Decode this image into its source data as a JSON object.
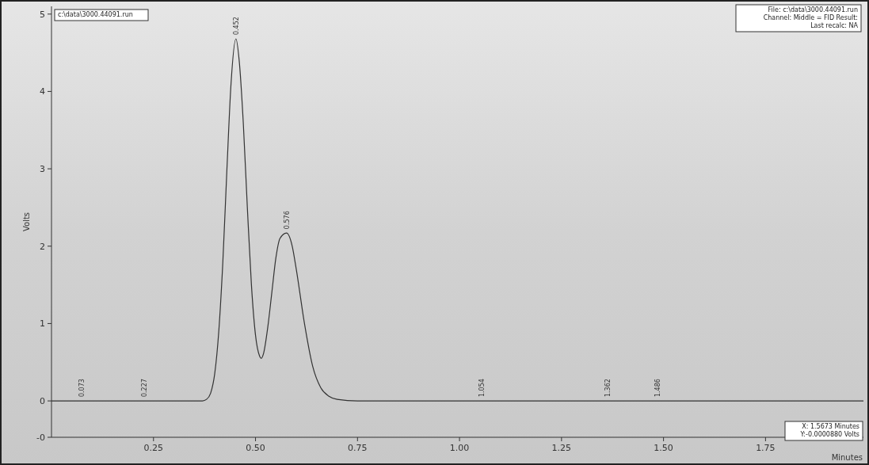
{
  "chart_data": {
    "type": "line",
    "xlabel": "Minutes",
    "ylabel": "Volts",
    "xlim": [
      0,
      1.99
    ],
    "ylim": [
      -0.47,
      5.1
    ],
    "xticks": [
      {
        "value": 0.25,
        "label": "0.25"
      },
      {
        "value": 0.5,
        "label": "0.50"
      },
      {
        "value": 0.75,
        "label": "0.75"
      },
      {
        "value": 1,
        "label": "1.00"
      },
      {
        "value": 1.25,
        "label": "1.25"
      },
      {
        "value": 1.5,
        "label": "1.50"
      },
      {
        "value": 1.75,
        "label": "1.75"
      }
    ],
    "yticks": [
      {
        "value": -0.47,
        "label": "-0"
      },
      0,
      1,
      2,
      3,
      4,
      5
    ],
    "grid": false,
    "marker": "none",
    "line_style": "solid",
    "series": [
      {
        "color": "#333333",
        "x": [
          0,
          0.37,
          0.38,
          0.39,
          0.4,
          0.41,
          0.42,
          0.43,
          0.44,
          0.452,
          0.46,
          0.47,
          0.48,
          0.49,
          0.5,
          0.51,
          0.514,
          0.52,
          0.53,
          0.54,
          0.55,
          0.56,
          0.576,
          0.59,
          0.6,
          0.62,
          0.64,
          0.66,
          0.68,
          0.7,
          0.75,
          1.99
        ],
        "values": [
          0,
          0,
          0.02,
          0.1,
          0.35,
          0.9,
          1.8,
          3.0,
          4.1,
          4.68,
          4.4,
          3.6,
          2.5,
          1.5,
          0.85,
          0.58,
          0.55,
          0.62,
          0.95,
          1.4,
          1.85,
          2.1,
          2.17,
          2.0,
          1.7,
          1.0,
          0.45,
          0.17,
          0.06,
          0.02,
          0,
          0
        ]
      }
    ],
    "annotations": [
      "c:\\data\\3000.44091.run",
      "File: c:\\data\\3000.44091.run\nChannel: Middle = FID  Result:\nLast recalc: NA",
      "X: 1.5673 Minutes\nY:-0.0000880 Volts",
      {
        "text": "0.073",
        "x": 0.073,
        "y": 0
      },
      {
        "text": "0.227",
        "x": 0.227,
        "y": 0
      },
      {
        "text": "0.452",
        "x": 0.452,
        "y": 4.68
      },
      {
        "text": "0.576",
        "x": 0.576,
        "y": 2.17
      },
      {
        "text": "1.054",
        "x": 1.054,
        "y": 0
      },
      {
        "text": "1.362",
        "x": 1.362,
        "y": 0
      },
      {
        "text": "1.486",
        "x": 1.486,
        "y": 0
      }
    ]
  }
}
